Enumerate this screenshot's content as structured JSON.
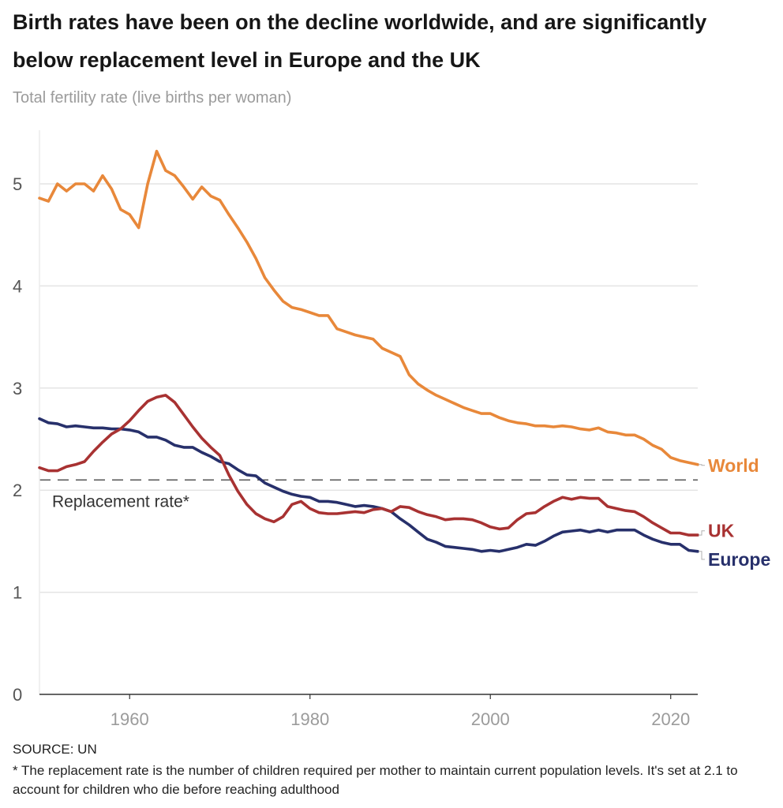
{
  "title": "Birth rates have been on the decline worldwide, and are significantly below replacement level in Europe and the UK",
  "subtitle": "Total fertility rate (live births per woman)",
  "source": "SOURCE: UN",
  "footnote": "* The replacement rate is the number of children required per mother to maintain current population levels. It's set at 2.1 to account for children who die before reaching adulthood",
  "colors": {
    "world": "#e8883a",
    "uk": "#a83232",
    "europe": "#27306b",
    "grid": "#e4e4e4",
    "reference": "#555555"
  },
  "chart_data": {
    "type": "line",
    "title": "Birth rates have been on the decline worldwide, and are significantly below replacement level in Europe and the UK",
    "ylabel": "Total fertility rate (live births per woman)",
    "xlabel": "",
    "xlim": [
      1950,
      2023
    ],
    "ylim": [
      0,
      5.5
    ],
    "yticks": [
      0,
      1,
      2,
      3,
      4,
      5
    ],
    "xticks": [
      1960,
      1980,
      2000,
      2020
    ],
    "grid": true,
    "x": [
      1950,
      1951,
      1952,
      1953,
      1954,
      1955,
      1956,
      1957,
      1958,
      1959,
      1960,
      1961,
      1962,
      1963,
      1964,
      1965,
      1966,
      1967,
      1968,
      1969,
      1970,
      1971,
      1972,
      1973,
      1974,
      1975,
      1976,
      1977,
      1978,
      1979,
      1980,
      1981,
      1982,
      1983,
      1984,
      1985,
      1986,
      1987,
      1988,
      1989,
      1990,
      1991,
      1992,
      1993,
      1994,
      1995,
      1996,
      1997,
      1998,
      1999,
      2000,
      2001,
      2002,
      2003,
      2004,
      2005,
      2006,
      2007,
      2008,
      2009,
      2010,
      2011,
      2012,
      2013,
      2014,
      2015,
      2016,
      2017,
      2018,
      2019,
      2020,
      2021,
      2022,
      2023
    ],
    "series": [
      {
        "name": "World",
        "key": "world",
        "values": [
          4.86,
          4.83,
          5.0,
          4.93,
          5.0,
          5.0,
          4.93,
          5.08,
          4.95,
          4.75,
          4.7,
          4.57,
          5.0,
          5.32,
          5.13,
          5.08,
          4.97,
          4.85,
          4.97,
          4.88,
          4.84,
          4.7,
          4.57,
          4.43,
          4.27,
          4.08,
          3.96,
          3.85,
          3.79,
          3.77,
          3.74,
          3.71,
          3.71,
          3.58,
          3.55,
          3.52,
          3.5,
          3.48,
          3.39,
          3.35,
          3.31,
          3.13,
          3.04,
          2.98,
          2.93,
          2.89,
          2.85,
          2.81,
          2.78,
          2.75,
          2.75,
          2.71,
          2.68,
          2.66,
          2.65,
          2.63,
          2.63,
          2.62,
          2.63,
          2.62,
          2.6,
          2.59,
          2.61,
          2.57,
          2.56,
          2.54,
          2.54,
          2.5,
          2.44,
          2.4,
          2.32,
          2.29,
          2.27,
          2.25
        ]
      },
      {
        "name": "UK",
        "key": "uk",
        "values": [
          2.22,
          2.19,
          2.19,
          2.23,
          2.25,
          2.28,
          2.38,
          2.47,
          2.55,
          2.6,
          2.68,
          2.78,
          2.87,
          2.91,
          2.93,
          2.86,
          2.74,
          2.62,
          2.51,
          2.42,
          2.34,
          2.15,
          1.99,
          1.86,
          1.77,
          1.72,
          1.69,
          1.74,
          1.86,
          1.89,
          1.82,
          1.78,
          1.77,
          1.77,
          1.78,
          1.79,
          1.78,
          1.81,
          1.82,
          1.79,
          1.84,
          1.83,
          1.79,
          1.76,
          1.74,
          1.71,
          1.72,
          1.72,
          1.71,
          1.68,
          1.64,
          1.62,
          1.63,
          1.71,
          1.77,
          1.78,
          1.84,
          1.89,
          1.93,
          1.91,
          1.93,
          1.92,
          1.92,
          1.84,
          1.82,
          1.8,
          1.79,
          1.74,
          1.68,
          1.63,
          1.58,
          1.58,
          1.56,
          1.56
        ]
      },
      {
        "name": "Europe",
        "key": "europe",
        "values": [
          2.7,
          2.66,
          2.65,
          2.62,
          2.63,
          2.62,
          2.61,
          2.61,
          2.6,
          2.6,
          2.59,
          2.57,
          2.52,
          2.52,
          2.49,
          2.44,
          2.42,
          2.42,
          2.37,
          2.33,
          2.28,
          2.26,
          2.2,
          2.15,
          2.14,
          2.07,
          2.03,
          1.99,
          1.96,
          1.94,
          1.93,
          1.89,
          1.89,
          1.88,
          1.86,
          1.84,
          1.85,
          1.84,
          1.82,
          1.79,
          1.72,
          1.66,
          1.59,
          1.52,
          1.49,
          1.45,
          1.44,
          1.43,
          1.42,
          1.4,
          1.41,
          1.4,
          1.42,
          1.44,
          1.47,
          1.46,
          1.5,
          1.55,
          1.59,
          1.6,
          1.61,
          1.59,
          1.61,
          1.59,
          1.61,
          1.61,
          1.61,
          1.56,
          1.52,
          1.49,
          1.47,
          1.47,
          1.41,
          1.4
        ]
      }
    ],
    "reference_line": {
      "value": 2.1,
      "label": "Replacement rate*"
    },
    "series_labels": [
      "World",
      "UK",
      "Europe"
    ]
  }
}
